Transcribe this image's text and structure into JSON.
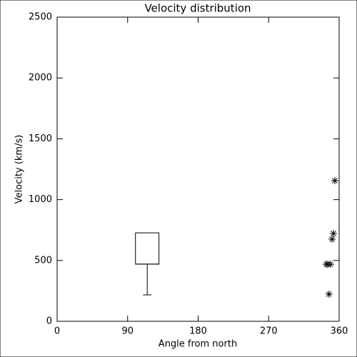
{
  "chart_data": {
    "type": "box",
    "title": "Velocity distribution",
    "x_label": "Angle from north",
    "y_label": "Velocity (km/s)",
    "xlim": [
      0,
      360
    ],
    "xticks": [
      0,
      90,
      180,
      270,
      360
    ],
    "ylim": [
      0,
      2500
    ],
    "yticks": [
      0,
      500,
      1000,
      1500,
      2000,
      2500
    ],
    "color": "#000000",
    "box": {
      "x": [
        100,
        130
      ],
      "q1": 470,
      "median": 470,
      "q3": 727,
      "whisker_low": 217,
      "whisker_x": 115
    },
    "scatter": {
      "marker": "asterisk",
      "x": [
        347,
        354.5,
        352.7,
        351,
        343.6,
        349,
        345.4
      ],
      "y": [
        223,
        1156,
        722,
        675,
        469,
        469,
        469
      ]
    }
  }
}
